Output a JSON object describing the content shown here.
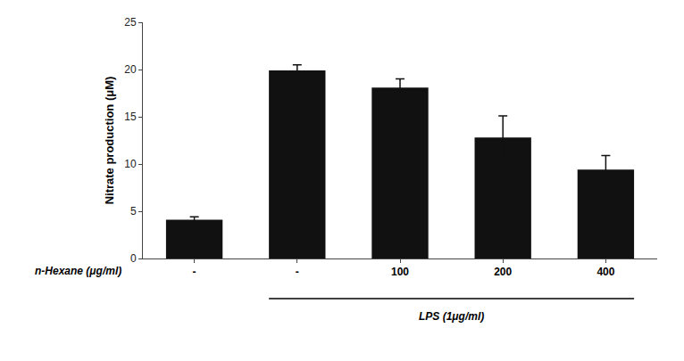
{
  "chart_data": {
    "type": "bar",
    "categories": [
      "-",
      "-",
      "100",
      "200",
      "400"
    ],
    "values": [
      4.1,
      19.9,
      18.1,
      12.8,
      9.4
    ],
    "errors": [
      0.3,
      0.6,
      0.9,
      2.3,
      1.5
    ],
    "color": "#111111",
    "xlabel": "n-Hexane (μg/ml)",
    "ylabel": "Nitrate production (μM)",
    "ylim": [
      0,
      25
    ],
    "yticks": [
      0,
      5,
      10,
      15,
      20,
      25
    ],
    "grid": false,
    "annotations": [
      {
        "text": "LPS (1μg/ml)",
        "from_category": 1,
        "to_category": 4
      }
    ]
  }
}
